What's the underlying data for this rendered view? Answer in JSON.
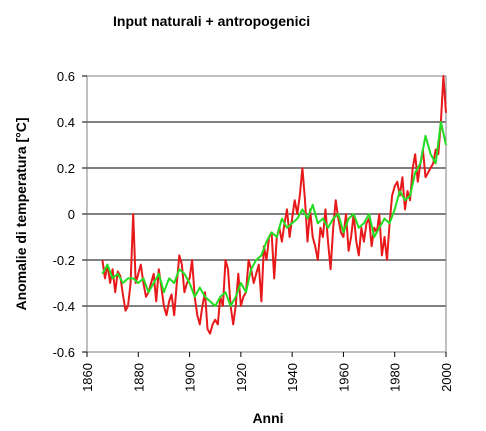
{
  "chart_data": {
    "type": "line",
    "title": "Input naturali + antropogenici",
    "xlabel": "Anni",
    "ylabel": "Anomalie di temperatura [°C]",
    "xlim": [
      1860,
      2000
    ],
    "ylim": [
      -0.6,
      0.6
    ],
    "xticks": [
      "1860",
      "1880",
      "1900",
      "1920",
      "1940",
      "1960",
      "1980",
      "2000"
    ],
    "yticks": [
      "-0.6",
      "-0.4",
      "-0.2",
      "0",
      "0.2",
      "0.4",
      "0.6"
    ],
    "grid": "horizontal",
    "legend": "none",
    "series": [
      {
        "color": "#e8191b",
        "x": [
          1866,
          1867,
          1868,
          1869,
          1870,
          1871,
          1872,
          1873,
          1874,
          1875,
          1876,
          1877,
          1878,
          1879,
          1880,
          1881,
          1882,
          1883,
          1884,
          1885,
          1886,
          1887,
          1888,
          1889,
          1890,
          1891,
          1892,
          1893,
          1894,
          1895,
          1896,
          1897,
          1898,
          1899,
          1900,
          1901,
          1902,
          1903,
          1904,
          1905,
          1906,
          1907,
          1908,
          1909,
          1910,
          1911,
          1912,
          1913,
          1914,
          1915,
          1916,
          1917,
          1918,
          1919,
          1920,
          1921,
          1922,
          1923,
          1924,
          1925,
          1926,
          1927,
          1928,
          1929,
          1930,
          1931,
          1932,
          1933,
          1934,
          1935,
          1936,
          1937,
          1938,
          1939,
          1940,
          1941,
          1942,
          1943,
          1944,
          1945,
          1946,
          1947,
          1948,
          1949,
          1950,
          1951,
          1952,
          1953,
          1954,
          1955,
          1956,
          1957,
          1958,
          1959,
          1960,
          1961,
          1962,
          1963,
          1964,
          1965,
          1966,
          1967,
          1968,
          1969,
          1970,
          1971,
          1972,
          1973,
          1974,
          1975,
          1976,
          1977,
          1978,
          1979,
          1980,
          1981,
          1982,
          1983,
          1984,
          1985,
          1986,
          1987,
          1988,
          1989,
          1990,
          1991,
          1992,
          1993,
          1994,
          1995,
          1996,
          1997,
          1998,
          1999,
          2000
        ],
        "y": [
          -0.2,
          -0.28,
          -0.22,
          -0.3,
          -0.24,
          -0.34,
          -0.25,
          -0.27,
          -0.35,
          -0.42,
          -0.4,
          -0.3,
          0.0,
          -0.3,
          -0.26,
          -0.22,
          -0.3,
          -0.36,
          -0.34,
          -0.3,
          -0.26,
          -0.38,
          -0.24,
          -0.32,
          -0.4,
          -0.44,
          -0.38,
          -0.35,
          -0.44,
          -0.3,
          -0.18,
          -0.22,
          -0.34,
          -0.3,
          -0.28,
          -0.2,
          -0.36,
          -0.44,
          -0.48,
          -0.4,
          -0.34,
          -0.5,
          -0.52,
          -0.48,
          -0.46,
          -0.48,
          -0.36,
          -0.4,
          -0.2,
          -0.24,
          -0.4,
          -0.48,
          -0.4,
          -0.26,
          -0.4,
          -0.36,
          -0.34,
          -0.2,
          -0.24,
          -0.3,
          -0.26,
          -0.22,
          -0.38,
          -0.14,
          -0.2,
          -0.1,
          -0.08,
          -0.28,
          -0.1,
          -0.06,
          -0.12,
          -0.04,
          0.02,
          -0.1,
          -0.02,
          0.06,
          0.0,
          0.08,
          0.2,
          0.06,
          -0.12,
          0.02,
          -0.1,
          -0.14,
          -0.2,
          -0.06,
          -0.1,
          0.02,
          -0.12,
          -0.24,
          -0.06,
          0.06,
          -0.02,
          -0.08,
          -0.1,
          0.0,
          -0.16,
          -0.1,
          0.0,
          -0.12,
          -0.18,
          -0.06,
          -0.12,
          -0.04,
          -0.02,
          -0.14,
          -0.06,
          -0.08,
          0.0,
          -0.18,
          -0.1,
          -0.2,
          -0.04,
          0.08,
          0.12,
          0.14,
          0.08,
          0.16,
          0.02,
          0.1,
          0.06,
          0.2,
          0.26,
          0.14,
          0.22,
          0.28,
          0.16,
          0.18,
          0.2,
          0.22,
          0.28,
          0.26,
          0.4,
          0.6,
          0.44
        ]
      },
      {
        "color": "#22dd22",
        "x": [
          1866,
          1868,
          1870,
          1872,
          1874,
          1876,
          1878,
          1880,
          1882,
          1884,
          1886,
          1888,
          1890,
          1892,
          1894,
          1896,
          1898,
          1900,
          1902,
          1904,
          1906,
          1908,
          1910,
          1912,
          1914,
          1916,
          1918,
          1920,
          1922,
          1924,
          1926,
          1928,
          1930,
          1932,
          1934,
          1936,
          1938,
          1940,
          1942,
          1944,
          1946,
          1948,
          1950,
          1952,
          1954,
          1956,
          1958,
          1960,
          1962,
          1964,
          1966,
          1968,
          1970,
          1972,
          1974,
          1976,
          1978,
          1980,
          1982,
          1984,
          1986,
          1988,
          1990,
          1992,
          1994,
          1996,
          1998,
          2000
        ],
        "y": [
          -0.26,
          -0.22,
          -0.28,
          -0.26,
          -0.3,
          -0.28,
          -0.28,
          -0.3,
          -0.28,
          -0.34,
          -0.3,
          -0.26,
          -0.34,
          -0.28,
          -0.3,
          -0.24,
          -0.26,
          -0.3,
          -0.36,
          -0.32,
          -0.36,
          -0.38,
          -0.4,
          -0.36,
          -0.34,
          -0.4,
          -0.36,
          -0.3,
          -0.34,
          -0.24,
          -0.2,
          -0.18,
          -0.12,
          -0.08,
          -0.1,
          -0.02,
          -0.06,
          -0.04,
          -0.02,
          0.02,
          -0.02,
          0.04,
          -0.04,
          -0.02,
          -0.06,
          -0.02,
          0.0,
          -0.08,
          -0.02,
          0.0,
          -0.06,
          -0.04,
          0.0,
          -0.1,
          -0.06,
          -0.02,
          -0.04,
          0.02,
          0.1,
          0.06,
          0.08,
          0.18,
          0.22,
          0.34,
          0.26,
          0.22,
          0.4,
          0.3
        ]
      }
    ]
  }
}
